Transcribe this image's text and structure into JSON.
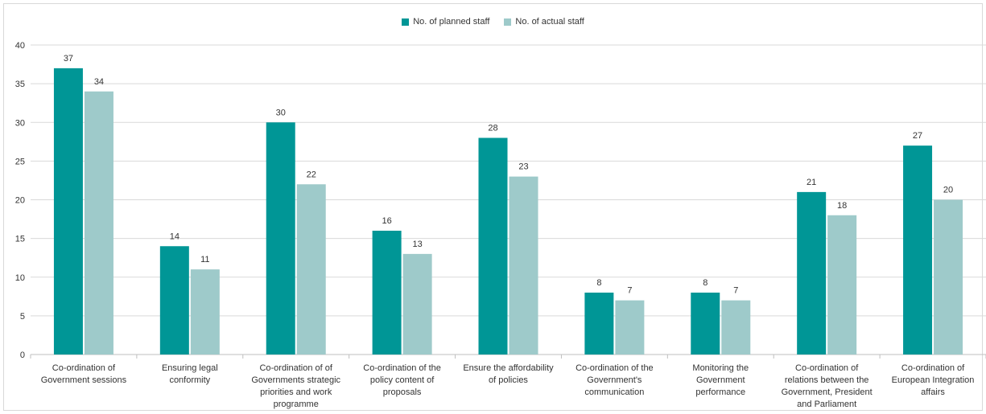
{
  "chart_data": {
    "type": "bar",
    "categories": [
      "Co-ordination of Government sessions",
      "Ensuring legal conformity",
      "Co-ordination of of Governments strategic priorities and work programme",
      "Co-ordination of the policy content of proposals",
      "Ensure the affordability of policies",
      "Co-ordination of the Government's communication",
      "Monitoring the Government performance",
      "Co-ordination of relations between the Government, President and Parliament",
      "Co-ordination of European Integration affairs"
    ],
    "series": [
      {
        "name": "No. of planned staff",
        "color": "#009696",
        "values": [
          37,
          14,
          30,
          16,
          28,
          8,
          8,
          21,
          27
        ]
      },
      {
        "name": "No. of actual staff",
        "color": "#9ecaca",
        "values": [
          34,
          11,
          22,
          13,
          23,
          7,
          7,
          18,
          20
        ]
      }
    ],
    "ylim": [
      0,
      40
    ],
    "yticks": [
      "0",
      "5",
      "10",
      "15",
      "20",
      "25",
      "30",
      "35",
      "40"
    ],
    "grid": true,
    "legend_position": "top-center"
  }
}
